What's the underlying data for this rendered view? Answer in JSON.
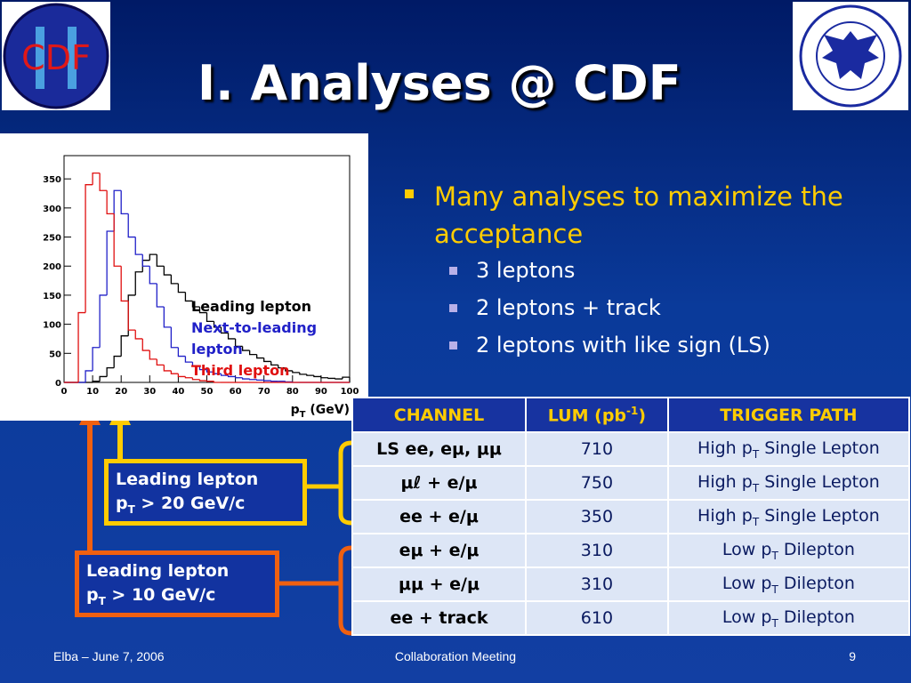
{
  "title": "I. Analyses @ CDF",
  "logo_left": "CDF",
  "chart_data": {
    "type": "histogram",
    "bins": [
      0,
      2.5,
      5,
      7.5,
      10,
      12.5,
      15,
      17.5,
      20,
      22.5,
      25,
      27.5,
      30,
      32.5,
      35,
      37.5,
      40,
      42.5,
      45,
      47.5,
      50,
      52.5,
      55,
      57.5,
      60,
      62.5,
      65,
      67.5,
      70,
      72.5,
      75,
      77.5,
      80,
      82.5,
      85,
      87.5,
      90,
      92.5,
      95,
      97.5,
      100
    ],
    "series": [
      {
        "name": "Leading lepton",
        "color": "#000000",
        "values": [
          0,
          0,
          0,
          0,
          2,
          10,
          25,
          45,
          80,
          150,
          190,
          210,
          220,
          200,
          185,
          170,
          155,
          140,
          130,
          120,
          105,
          95,
          85,
          75,
          62,
          55,
          48,
          42,
          36,
          30,
          25,
          20,
          17,
          14,
          12,
          10,
          8,
          7,
          6,
          9
        ]
      },
      {
        "name": "Next-to-leading lepton",
        "color": "#2020c8",
        "values": [
          0,
          0,
          0,
          20,
          60,
          150,
          260,
          330,
          290,
          250,
          220,
          200,
          170,
          130,
          95,
          60,
          45,
          35,
          28,
          22,
          18,
          15,
          12,
          10,
          8,
          6,
          5,
          4,
          3,
          2,
          2,
          1,
          0,
          0,
          0,
          0,
          0,
          0,
          0,
          0
        ]
      },
      {
        "name": "Third lepton",
        "color": "#e01010",
        "values": [
          0,
          0,
          120,
          340,
          360,
          330,
          290,
          200,
          140,
          90,
          75,
          55,
          40,
          30,
          20,
          15,
          10,
          8,
          5,
          3,
          2,
          0,
          0,
          0,
          0,
          0,
          0,
          0,
          0,
          0,
          0,
          0,
          0,
          0,
          0,
          0,
          0,
          0,
          0,
          0
        ]
      }
    ],
    "xlim": [
      0,
      100
    ],
    "ylim": [
      0,
      390
    ],
    "xticks": [
      0,
      10,
      20,
      30,
      40,
      50,
      60,
      70,
      80,
      90,
      100
    ],
    "yticks": [
      0,
      50,
      100,
      150,
      200,
      250,
      300,
      350
    ],
    "xlabel": [
      "p",
      "T",
      " (GeV)"
    ]
  },
  "bullets": {
    "main": "Many analyses to maximize the acceptance",
    "sub": [
      "3 leptons",
      "2 leptons + track",
      "2 leptons with like sign (LS)"
    ]
  },
  "table": {
    "header": [
      "CHANNEL",
      [
        "LUM (pb",
        "-1",
        ")"
      ],
      "TRIGGER PATH"
    ],
    "rows": [
      [
        "LS  ee, eμ, μμ",
        710,
        [
          "High p",
          "T",
          " Single Lepton"
        ]
      ],
      [
        "μℓ + e/μ",
        750,
        [
          "High p",
          "T",
          " Single Lepton"
        ]
      ],
      [
        "ee + e/μ",
        350,
        [
          "High p",
          "T",
          " Single Lepton"
        ]
      ],
      [
        "eμ + e/μ",
        310,
        [
          "Low p",
          "T",
          " Dilepton"
        ]
      ],
      [
        "μμ + e/μ",
        310,
        [
          "Low p",
          "T",
          " Dilepton"
        ]
      ],
      [
        "ee + track",
        610,
        [
          "Low p",
          "T",
          " Dilepton"
        ]
      ]
    ]
  },
  "boxes": [
    {
      "line1": "Leading lepton",
      "line2": [
        "p",
        "T",
        " > 20 GeV/c"
      ]
    },
    {
      "line1": "Leading lepton",
      "line2": [
        "p",
        "T",
        " > 10 GeV/c"
      ]
    }
  ],
  "footer": {
    "left": "Elba – June 7, 2006",
    "center": "Collaboration Meeting",
    "right": "9"
  }
}
